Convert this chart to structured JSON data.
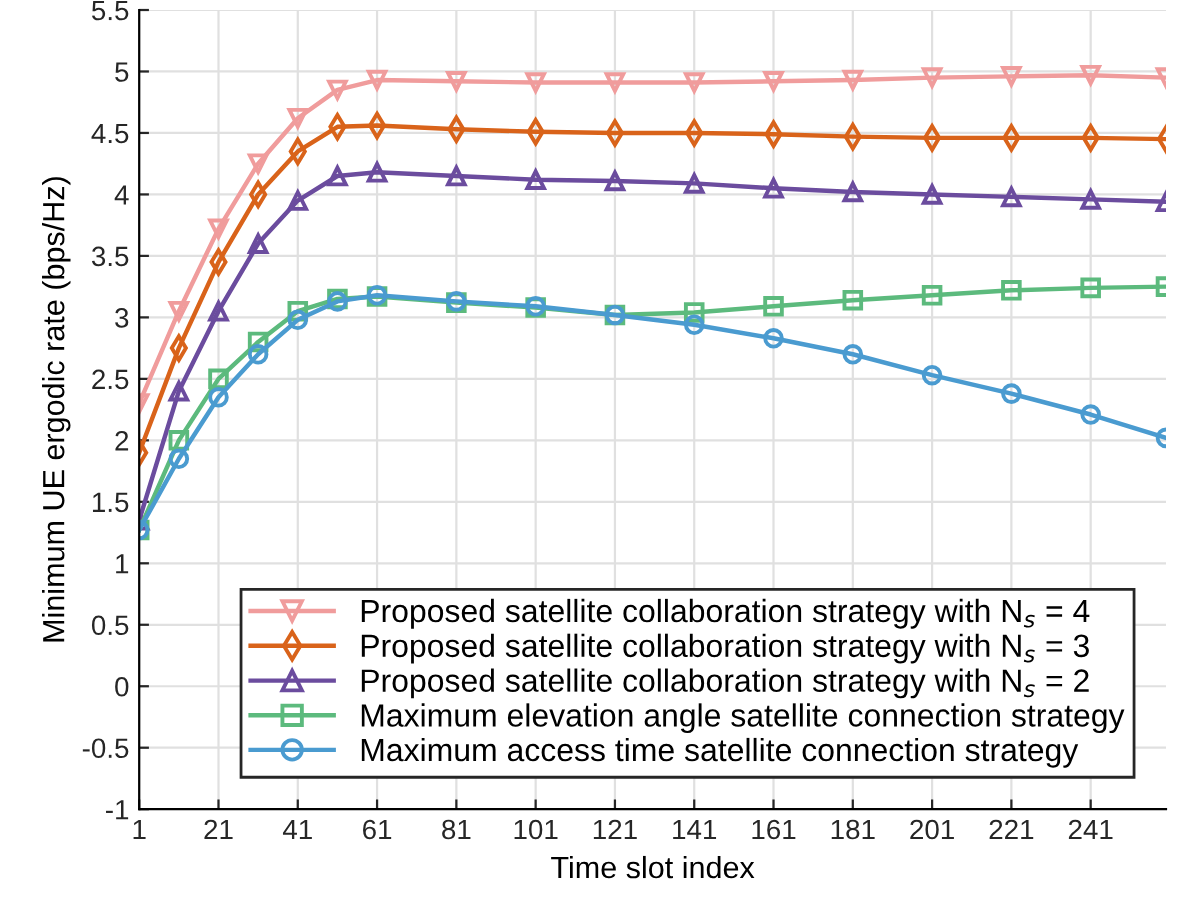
{
  "chart_data": {
    "type": "line",
    "xlabel": "Time slot index",
    "ylabel": "Minimum UE ergodic rate (bps/Hz)",
    "x": [
      1,
      11,
      21,
      31,
      41,
      51,
      61,
      81,
      101,
      121,
      141,
      161,
      181,
      201,
      221,
      241,
      260
    ],
    "series": [
      {
        "name": "Proposed satellite collaboration strategy with N$_{s}$ = 4",
        "color": "#f09c9c",
        "marker": "triangle_down",
        "values": [
          2.3,
          3.05,
          3.72,
          4.25,
          4.62,
          4.85,
          4.93,
          4.92,
          4.91,
          4.91,
          4.91,
          4.92,
          4.93,
          4.95,
          4.96,
          4.97,
          4.95
        ]
      },
      {
        "name": "Proposed satellite collaboration strategy with N$_{s}$ = 3",
        "color": "#d9631a",
        "marker": "diamond",
        "values": [
          1.9,
          2.75,
          3.45,
          4.0,
          4.35,
          4.55,
          4.56,
          4.53,
          4.51,
          4.5,
          4.5,
          4.49,
          4.47,
          4.46,
          4.46,
          4.46,
          4.45
        ]
      },
      {
        "name": "Proposed satellite collaboration strategy with N$_{s}$ = 2",
        "color": "#6b4c9e",
        "marker": "triangle",
        "values": [
          1.35,
          2.4,
          3.05,
          3.6,
          3.95,
          4.15,
          4.18,
          4.15,
          4.12,
          4.11,
          4.09,
          4.05,
          4.02,
          4.0,
          3.98,
          3.96,
          3.94
        ]
      },
      {
        "name": "Maximum elevation angle satellite connection strategy",
        "color": "#5cba7d",
        "marker": "square",
        "values": [
          1.27,
          2.0,
          2.5,
          2.8,
          3.05,
          3.15,
          3.17,
          3.12,
          3.08,
          3.02,
          3.04,
          3.09,
          3.14,
          3.18,
          3.22,
          3.24,
          3.25
        ]
      },
      {
        "name": "Maximum access time satellite connection strategy",
        "color": "#4a9bd0",
        "marker": "circle",
        "values": [
          1.27,
          1.85,
          2.35,
          2.7,
          2.98,
          3.13,
          3.18,
          3.13,
          3.09,
          3.02,
          2.94,
          2.83,
          2.7,
          2.53,
          2.38,
          2.21,
          2.02
        ]
      }
    ],
    "xlim": [
      1,
      260
    ],
    "xticks": [
      1,
      21,
      41,
      61,
      81,
      101,
      121,
      141,
      161,
      181,
      201,
      221,
      241
    ],
    "ylim": [
      -1,
      5.5
    ],
    "yticks": [
      -1,
      -0.5,
      0,
      0.5,
      1,
      1.5,
      2,
      2.5,
      3,
      3.5,
      4,
      4.5,
      5,
      5.5
    ],
    "grid": true,
    "legend": "bottom right",
    "line_style": "solid"
  }
}
